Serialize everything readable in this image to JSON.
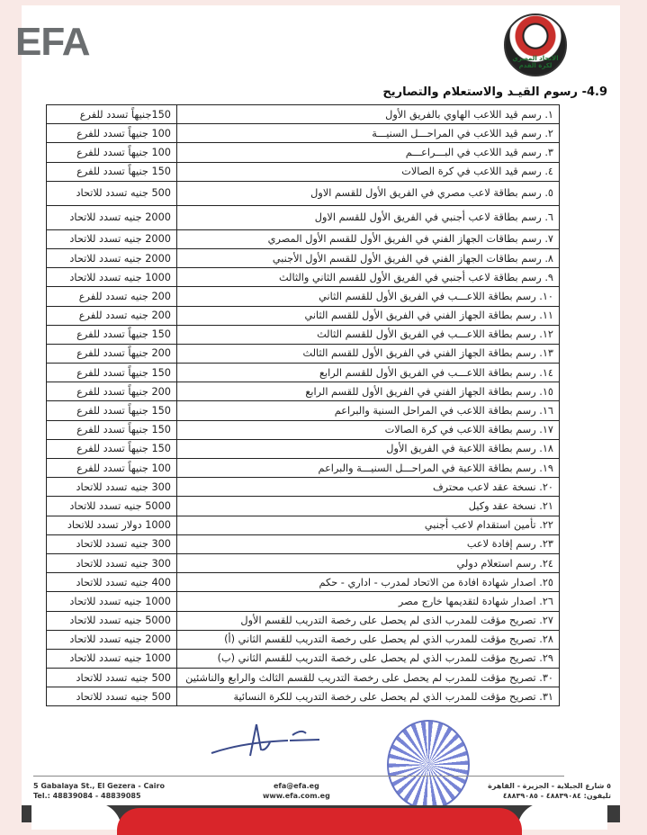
{
  "header": {
    "brand": "EFA",
    "logo_text": "الاتحاد المصري لكرة القدم"
  },
  "section_title": "4.9- رسوم القيـد والاستعلام والتصاريح",
  "rows": [
    {
      "desc": "١.  رسم قيد اللاعب الهاوي بالفريق الأول",
      "value": "150جنيهاً تسدد للفرع"
    },
    {
      "desc": "٢.  رسم قيد اللاعب في المراحـــل السنيـــة",
      "value": "100 جنيهاً تسدد للفرع"
    },
    {
      "desc": "٣.  رسم قيد اللاعب في البـــراعـــم",
      "value": "100 جنيهاً تسدد للفرع"
    },
    {
      "desc": "٤.  رسم قيد اللاعب في كرة الصالات",
      "value": "150 جنيهاً تسدد للفرع"
    },
    {
      "desc": "٥.  رسم بطاقة لاعب مصري في الفريق الأول للقسم الاول",
      "value": "500 جنيه تسدد للاتحاد"
    },
    {
      "desc": "٦.  رسم بطاقة لاعب أجنبي في الفريق الأول للقسم الاول",
      "value": "2000 جنيه تسدد للاتحاد"
    },
    {
      "desc": "٧.  رسم بطاقات الجهاز الفني في الفريق الأول للقسم الأول المصري",
      "value": "2000 جنيه تسدد للاتحاد"
    },
    {
      "desc": "٨.  رسم بطاقات الجهاز الفني في الفريق الأول للقسم الأول الأجنبي",
      "value": "2000 جنيه تسدد للاتحاد"
    },
    {
      "desc": "٩.  رسم بطاقة لاعب أجنبي في الفريق الأول للقسم الثاني والثالث",
      "value": "1000 جنيه تسدد للاتحاد"
    },
    {
      "desc": "١٠. رسم بطاقة اللاعـــب في الفريق الأول للقسم الثاني",
      "value": "200 جنيه تسدد للفرع"
    },
    {
      "desc": "١١. رسم بطاقة الجهاز الفني في الفريق الأول للقسم الثاني",
      "value": "200 جنيه تسدد للفرع"
    },
    {
      "desc": "١٢. رسم بطاقة اللاعـــب في الفريق الأول للقسم الثالث",
      "value": "150 جنيهاً تسدد للفرع"
    },
    {
      "desc": "١٣. رسم بطاقة الجهاز الفني في الفريق الأول للقسم الثالث",
      "value": "200 جنيهاً تسدد للفرع"
    },
    {
      "desc": "١٤. رسم بطاقة اللاعـــب في الفريق الأول للقسم الرابع",
      "value": "150 جنيهاً تسدد للفرع"
    },
    {
      "desc": "١٥. رسم بطاقة الجهاز الفني في الفريق الأول للقسم الرابع",
      "value": "200 جنيهاً تسدد للفرع"
    },
    {
      "desc": "١٦. رسم بطاقة اللاعب في المراحل السنية والبراعم",
      "value": "150 جنيهاً تسدد للفرع"
    },
    {
      "desc": "١٧. رسم بطاقة اللاعب في كرة الصالات",
      "value": "150 جنيهاً تسدد للفرع"
    },
    {
      "desc": "١٨. رسم بطاقة اللاعبة في الفريق الأول",
      "value": "150 جنيهاً تسدد للفرع"
    },
    {
      "desc": "١٩. رسم بطاقة اللاعبة في المراحـــل السنيـــة والبراعم",
      "value": "100 جنيهاً تسدد للفرع"
    },
    {
      "desc": "٢٠. نسخة عقد لاعب محترف",
      "value": "300 جنيه تسدد للاتحاد"
    },
    {
      "desc": "٢١. نسخة عقد وكيل",
      "value": "5000 جنيه تسدد للاتحاد"
    },
    {
      "desc": "٢٢. تأمين استقدام لاعب أجنبي",
      "value": "1000 دولار تسدد للاتحاد"
    },
    {
      "desc": "٢٣. رسم إفادة لاعب",
      "value": "300 جنيه تسدد للاتحاد"
    },
    {
      "desc": "٢٤. رسم استعلام دولي",
      "value": "300 جنيه تسدد للاتحاد"
    },
    {
      "desc": "٢٥. اصدار شهادة افادة من الاتحاد لمدرب - اداري - حكم",
      "value": "400 جنيه تسدد للاتحاد"
    },
    {
      "desc": "٢٦. اصدار شهادة لتقديمها خارج مصر",
      "value": "1000 جنيه تسدد للاتحاد"
    },
    {
      "desc": "٢٧. تصريح مؤقت للمدرب الذى لم يحصل على رخصة التدريب للقسم الأول",
      "value": "5000 جنيه تسدد للاتحاد"
    },
    {
      "desc": "٢٨. تصريح مؤقت للمدرب الذي لم يحصل على رخصة التدريب للقسم الثاني (أ)",
      "value": "2000 جنيه تسدد للاتحاد"
    },
    {
      "desc": "٢٩. تصريح مؤقت للمدرب الذي لم يحصل على رخصة التدريب للقسم الثاني (ب)",
      "value": "1000 جنيه تسدد للاتحاد"
    },
    {
      "desc": "٣٠. تصريح مؤقت للمدرب لم يحصل على رخصة التدريب للقسم الثالث والرابع والناشئين",
      "value": "500 جنيه تسدد للاتحاد"
    },
    {
      "desc": "٣١. تصريح مؤقت للمدرب الذي لم يحصل على رخصة التدريب للكرة النسائية",
      "value": "500 جنيه تسدد للاتحاد"
    }
  ],
  "footer": {
    "address_en": "5 Gabalaya St., El Gezera - Cairo",
    "tel_en": "Tel.: 48839084 - 48839085",
    "email": "efa@efa.eg",
    "website": "www.efa.com.eg",
    "address_ar": "٥ شارع الجبلاية - الجزيرة - القاهرة",
    "tel_ar": "تليفون: ٤٨٨٣٩٠٨٤ - ٤٨٨٣٩٠٨٥"
  }
}
